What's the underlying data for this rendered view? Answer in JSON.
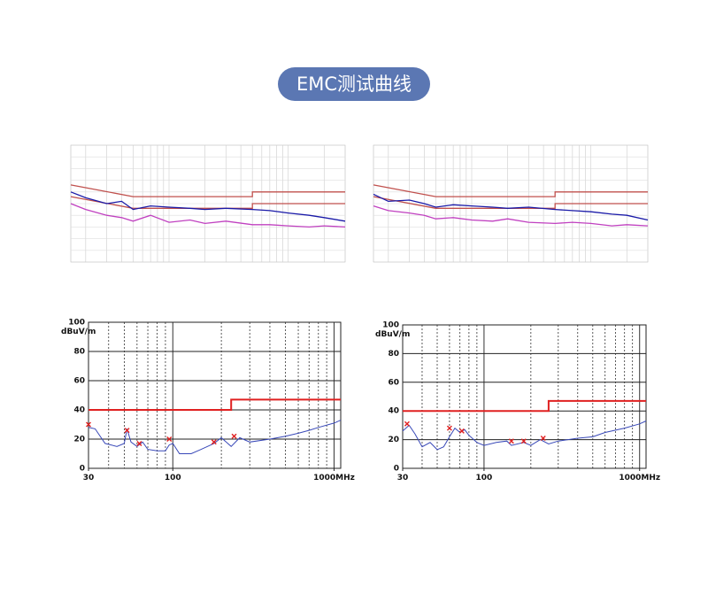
{
  "title": "EMC测试曲线",
  "chart_data": [
    {
      "type": "line",
      "log_x": true,
      "xlim": [
        0.15,
        30
      ],
      "ylim": [
        0,
        100
      ],
      "grid": true,
      "series": [
        {
          "color": "#c0504d",
          "x": [
            0.15,
            0.5,
            5,
            5,
            30
          ],
          "values": [
            66,
            56,
            56,
            60,
            60
          ]
        },
        {
          "color": "#c0504d",
          "x": [
            0.15,
            0.5,
            5,
            5,
            30
          ],
          "values": [
            56,
            46,
            46,
            50,
            50
          ]
        },
        {
          "color": "#1a1aa8",
          "x": [
            0.15,
            0.2,
            0.3,
            0.4,
            0.5,
            0.7,
            1,
            1.5,
            2,
            3,
            5,
            7,
            10,
            15,
            20,
            30
          ],
          "values": [
            60,
            55,
            50,
            52,
            45,
            48,
            47,
            46,
            45,
            46,
            45,
            44,
            42,
            40,
            38,
            35
          ]
        },
        {
          "color": "#c040c0",
          "x": [
            0.15,
            0.2,
            0.3,
            0.4,
            0.5,
            0.7,
            1,
            1.5,
            2,
            3,
            5,
            7,
            10,
            15,
            20,
            30
          ],
          "values": [
            50,
            45,
            40,
            38,
            35,
            40,
            34,
            36,
            33,
            35,
            32,
            32,
            31,
            30,
            31,
            30
          ]
        }
      ]
    },
    {
      "type": "line",
      "log_x": true,
      "xlim": [
        0.15,
        30
      ],
      "ylim": [
        0,
        100
      ],
      "grid": true,
      "series": [
        {
          "color": "#c0504d",
          "x": [
            0.15,
            0.5,
            5,
            5,
            30
          ],
          "values": [
            66,
            56,
            56,
            60,
            60
          ]
        },
        {
          "color": "#c0504d",
          "x": [
            0.15,
            0.5,
            5,
            5,
            30
          ],
          "values": [
            56,
            46,
            46,
            50,
            50
          ]
        },
        {
          "color": "#1a1aa8",
          "x": [
            0.15,
            0.2,
            0.3,
            0.4,
            0.5,
            0.7,
            1,
            1.5,
            2,
            3,
            5,
            7,
            10,
            15,
            20,
            30
          ],
          "values": [
            58,
            52,
            53,
            50,
            47,
            49,
            48,
            47,
            46,
            47,
            45,
            44,
            43,
            41,
            40,
            36
          ]
        },
        {
          "color": "#c040c0",
          "x": [
            0.15,
            0.2,
            0.3,
            0.4,
            0.5,
            0.7,
            1,
            1.5,
            2,
            3,
            5,
            7,
            10,
            15,
            20,
            30
          ],
          "values": [
            48,
            44,
            42,
            40,
            37,
            38,
            36,
            35,
            37,
            34,
            33,
            34,
            33,
            31,
            32,
            31
          ]
        }
      ]
    },
    {
      "type": "line",
      "log_x": true,
      "xlim": [
        30,
        1100
      ],
      "ylim": [
        0,
        100
      ],
      "grid": true,
      "y_label": "dBuV/m",
      "yticks": [
        0,
        20,
        40,
        60,
        80,
        100
      ],
      "xticks": [
        30,
        100,
        {
          "value": 1000,
          "label": "1000MHz"
        }
      ],
      "series": [
        {
          "color": "#e02020",
          "x": [
            30,
            230,
            230,
            1100
          ],
          "values": [
            40,
            40,
            47,
            47
          ]
        },
        {
          "color": "#3848b8",
          "x": [
            30,
            33,
            38,
            45,
            50,
            52,
            55,
            60,
            65,
            70,
            80,
            90,
            95,
            100,
            110,
            130,
            150,
            180,
            200,
            230,
            260,
            300,
            400,
            500,
            600,
            700,
            800,
            1000,
            1100
          ],
          "values": [
            28,
            27,
            17,
            15,
            17,
            27,
            18,
            15,
            18,
            13,
            12,
            12,
            16,
            17,
            10,
            10,
            13,
            17,
            21,
            15,
            21,
            18,
            20,
            22,
            24,
            26,
            28,
            31,
            33
          ]
        },
        {
          "color": "#e02020",
          "marker": "x",
          "x": [
            30,
            52,
            62,
            95,
            180,
            240
          ],
          "values": [
            30,
            26,
            17,
            20,
            18,
            22
          ]
        }
      ]
    },
    {
      "type": "line",
      "log_x": true,
      "xlim": [
        30,
        1100
      ],
      "ylim": [
        0,
        100
      ],
      "grid": true,
      "y_label": "dBuV/m",
      "yticks": [
        0,
        20,
        40,
        60,
        80,
        100
      ],
      "xticks": [
        30,
        100,
        {
          "value": 1000,
          "label": "1000MHz"
        }
      ],
      "series": [
        {
          "color": "#e02020",
          "x": [
            30,
            260,
            260,
            1100
          ],
          "values": [
            40,
            40,
            47,
            47
          ]
        },
        {
          "color": "#3848b8",
          "x": [
            30,
            33,
            36,
            40,
            45,
            50,
            55,
            60,
            65,
            70,
            75,
            80,
            90,
            100,
            120,
            140,
            150,
            180,
            200,
            230,
            260,
            300,
            400,
            500,
            600,
            800,
            1000,
            1100
          ],
          "values": [
            26,
            30,
            24,
            15,
            18,
            13,
            15,
            22,
            28,
            25,
            27,
            23,
            18,
            16,
            18,
            19,
            16,
            18,
            16,
            20,
            17,
            19,
            21,
            22,
            25,
            28,
            31,
            33
          ]
        },
        {
          "color": "#e02020",
          "marker": "x",
          "x": [
            32,
            60,
            72,
            150,
            180,
            240
          ],
          "values": [
            31,
            28,
            26,
            19,
            19,
            21
          ]
        }
      ]
    }
  ]
}
